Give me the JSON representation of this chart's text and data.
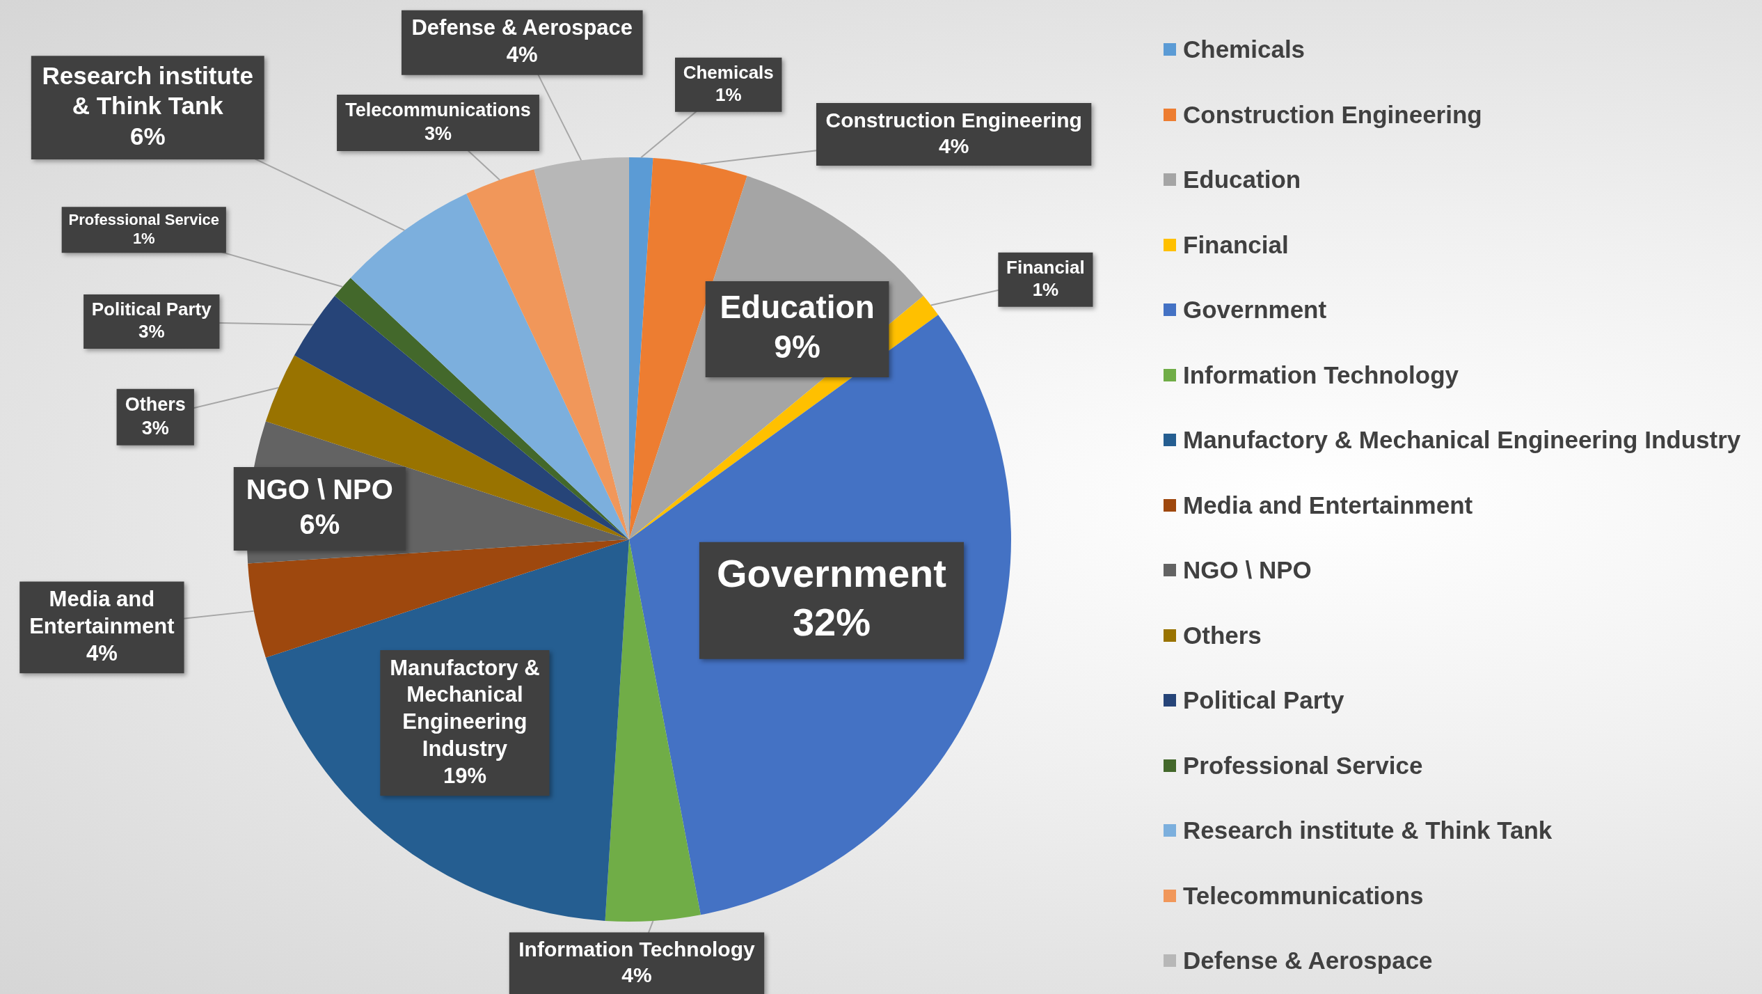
{
  "chart_data": {
    "type": "pie",
    "categories": [
      "Chemicals",
      "Construction Engineering",
      "Education",
      "Financial",
      "Government",
      "Information Technology",
      "Manufactory & Mechanical Engineering Industry",
      "Media and Entertainment",
      "NGO \\ NPO",
      "Others",
      "Political Party",
      "Professional Service",
      "Research institute & Think Tank",
      "Telecommunications",
      "Defense & Aerospace"
    ],
    "values": [
      1,
      4,
      9,
      1,
      32,
      4,
      19,
      4,
      6,
      3,
      3,
      1,
      6,
      3,
      4
    ],
    "value_labels": [
      "1%",
      "4%",
      "9%",
      "1%",
      "32%",
      "4%",
      "19%",
      "4%",
      "6%",
      "3%",
      "3%",
      "1%",
      "6%",
      "3%",
      "4%"
    ],
    "colors": [
      "#5b9bd5",
      "#ed7d31",
      "#a5a5a5",
      "#ffc000",
      "#4472c4",
      "#70ad47",
      "#255e91",
      "#9e480e",
      "#636363",
      "#997300",
      "#264478",
      "#43682b",
      "#7cafdd",
      "#f1975a",
      "#b7b7b7"
    ],
    "legend": "right"
  }
}
